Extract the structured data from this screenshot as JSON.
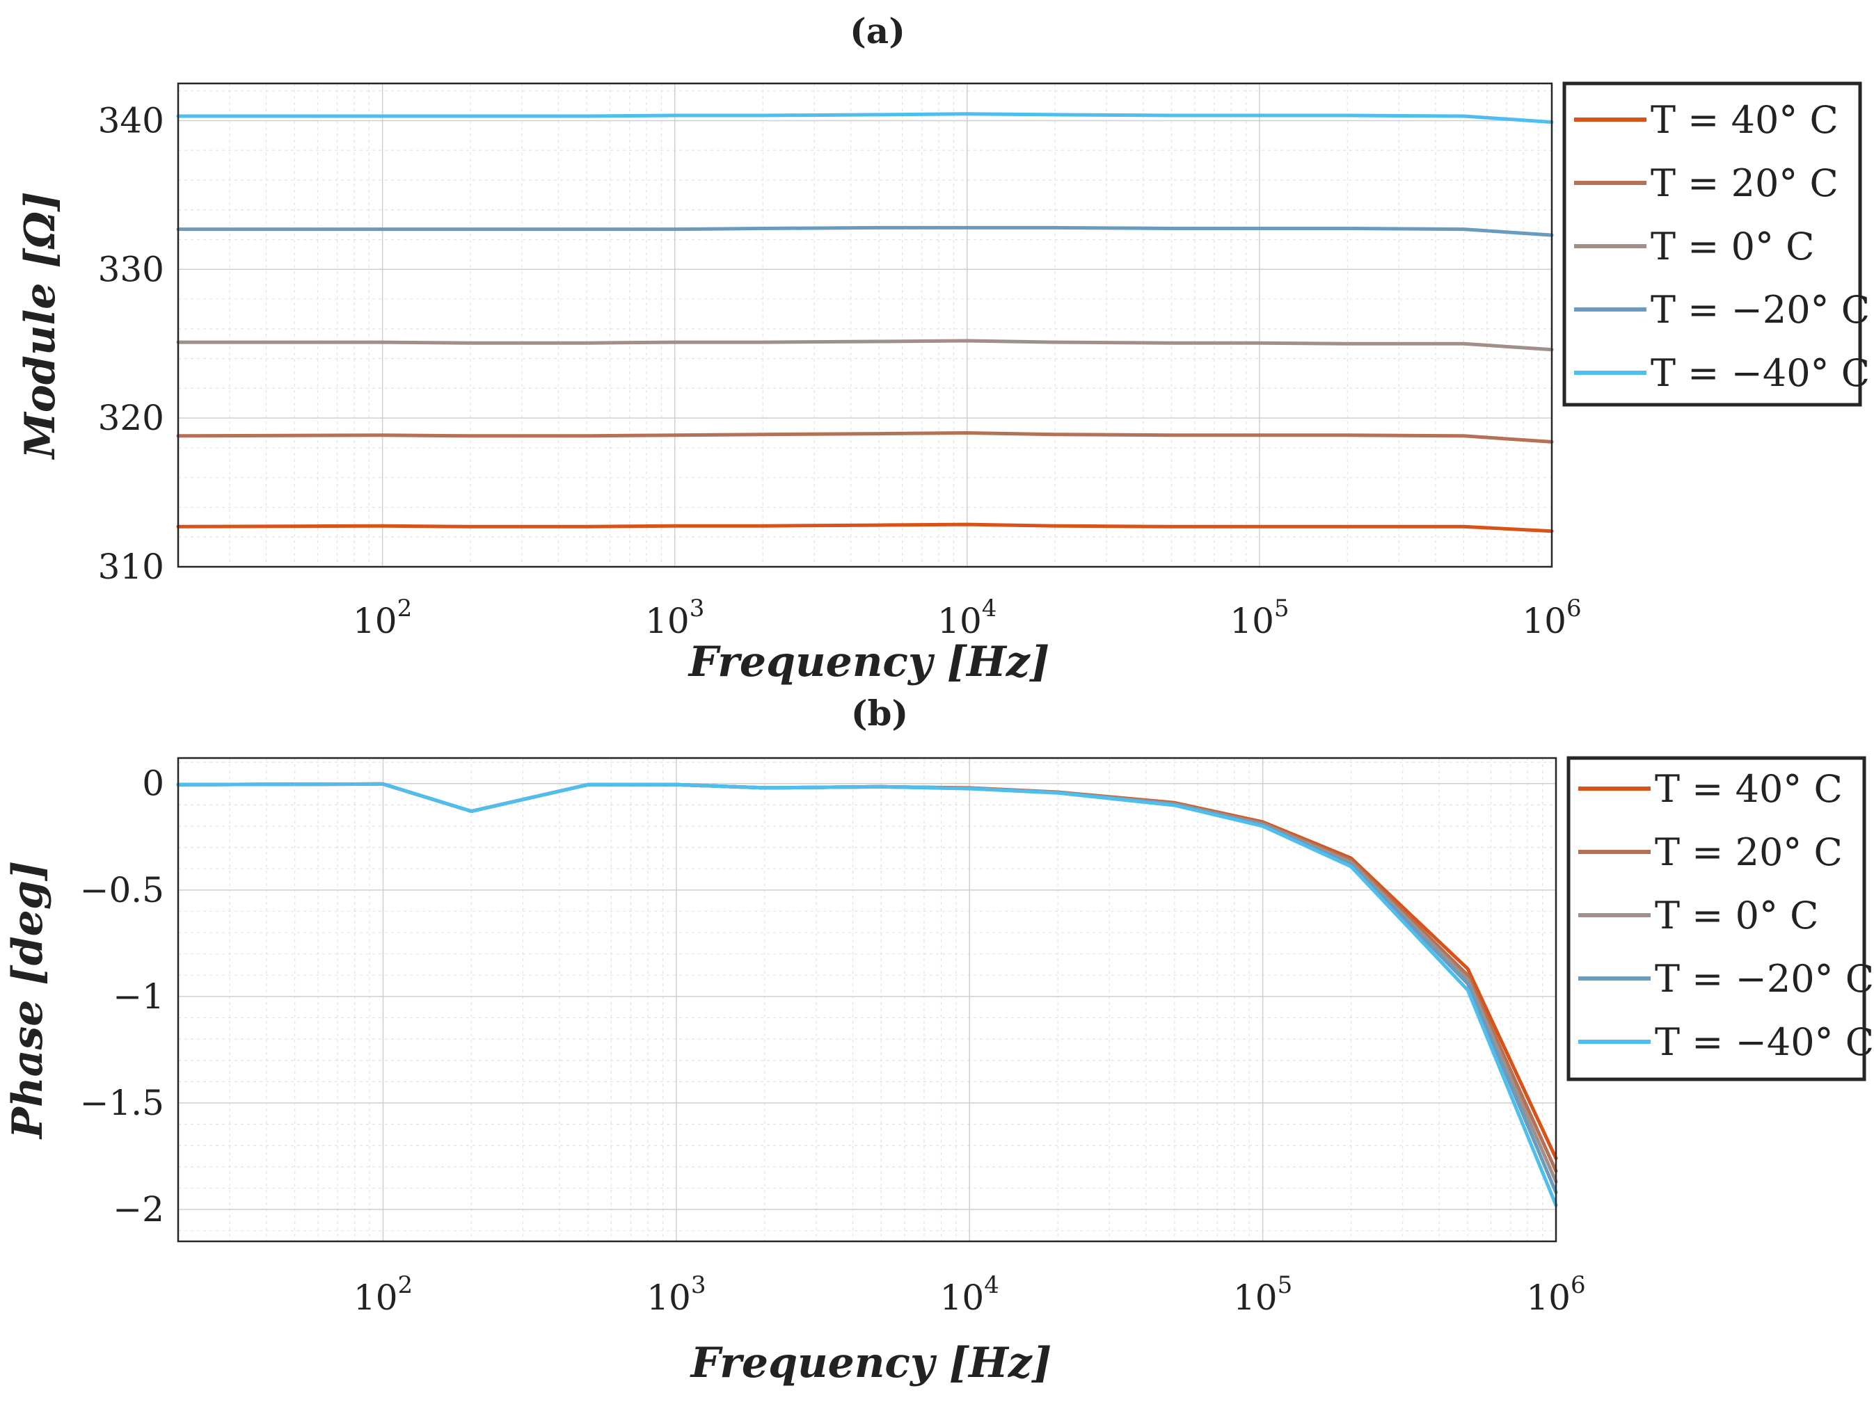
{
  "chart_data": [
    {
      "type": "line",
      "title": "(a)",
      "xlabel": "Frequency [Hz]",
      "ylabel": "Module [Ω]",
      "xscale": "log",
      "xlim": [
        20,
        1000000
      ],
      "ylim": [
        310,
        342.5
      ],
      "x_ticks": [
        {
          "base": "10",
          "exp": "2",
          "value": 100
        },
        {
          "base": "10",
          "exp": "3",
          "value": 1000
        },
        {
          "base": "10",
          "exp": "4",
          "value": 10000
        },
        {
          "base": "10",
          "exp": "5",
          "value": 100000
        },
        {
          "base": "10",
          "exp": "6",
          "value": 1000000
        }
      ],
      "y_ticks": [
        {
          "label": "310",
          "value": 310
        },
        {
          "label": "320",
          "value": 320
        },
        {
          "label": "330",
          "value": 330
        },
        {
          "label": "340",
          "value": 340
        }
      ],
      "grid": true,
      "legend_position": "outside-right",
      "x": [
        20,
        100,
        200,
        500,
        1000,
        2000,
        5000,
        10000,
        20000,
        50000,
        100000,
        200000,
        500000,
        1000000
      ],
      "series": [
        {
          "name": "T = 40° C",
          "color": "#D95319",
          "values": [
            312.7,
            312.75,
            312.7,
            312.7,
            312.75,
            312.75,
            312.8,
            312.85,
            312.75,
            312.7,
            312.7,
            312.7,
            312.7,
            312.4
          ]
        },
        {
          "name": "T = 20° C",
          "color": "#B57055",
          "values": [
            318.8,
            318.85,
            318.8,
            318.8,
            318.85,
            318.9,
            318.95,
            319.0,
            318.9,
            318.85,
            318.85,
            318.85,
            318.8,
            318.4
          ]
        },
        {
          "name": "T = 0° C",
          "color": "#A09088",
          "values": [
            325.1,
            325.1,
            325.05,
            325.05,
            325.1,
            325.1,
            325.15,
            325.2,
            325.1,
            325.05,
            325.05,
            325.0,
            325.0,
            324.6
          ]
        },
        {
          "name": "T = −20° C",
          "color": "#6A9BBF",
          "values": [
            332.7,
            332.7,
            332.7,
            332.7,
            332.7,
            332.75,
            332.8,
            332.8,
            332.8,
            332.75,
            332.75,
            332.75,
            332.7,
            332.3
          ]
        },
        {
          "name": "T = −40° C",
          "color": "#4DBEEE",
          "values": [
            340.3,
            340.3,
            340.3,
            340.3,
            340.35,
            340.35,
            340.4,
            340.45,
            340.4,
            340.35,
            340.35,
            340.35,
            340.3,
            339.9
          ]
        }
      ]
    },
    {
      "type": "line",
      "title": "(b)",
      "xlabel": "Frequency [Hz]",
      "ylabel": "Phase [deg]",
      "xscale": "log",
      "xlim": [
        20,
        1000000
      ],
      "ylim": [
        -2.15,
        0.12
      ],
      "x_ticks": [
        {
          "base": "10",
          "exp": "2",
          "value": 100
        },
        {
          "base": "10",
          "exp": "3",
          "value": 1000
        },
        {
          "base": "10",
          "exp": "4",
          "value": 10000
        },
        {
          "base": "10",
          "exp": "5",
          "value": 100000
        },
        {
          "base": "10",
          "exp": "6",
          "value": 1000000
        }
      ],
      "y_ticks": [
        {
          "label": "0",
          "value": 0
        },
        {
          "label": "−0.5",
          "value": -0.5
        },
        {
          "label": "−1",
          "value": -1
        },
        {
          "label": "−1.5",
          "value": -1.5
        },
        {
          "label": "−2",
          "value": -2
        }
      ],
      "grid": true,
      "legend_position": "outside-right",
      "x": [
        20,
        100,
        200,
        500,
        1000,
        2000,
        5000,
        10000,
        20000,
        50000,
        100000,
        200000,
        500000,
        1000000
      ],
      "series": [
        {
          "name": "T = 40° C",
          "color": "#D95319",
          "values": [
            -0.005,
            -0.002,
            -0.13,
            -0.005,
            -0.005,
            -0.02,
            -0.015,
            -0.02,
            -0.04,
            -0.09,
            -0.18,
            -0.35,
            -0.87,
            -1.76
          ]
        },
        {
          "name": "T = 20° C",
          "color": "#B57055",
          "values": [
            -0.005,
            -0.002,
            -0.13,
            -0.005,
            -0.005,
            -0.02,
            -0.015,
            -0.021,
            -0.041,
            -0.093,
            -0.185,
            -0.36,
            -0.9,
            -1.82
          ]
        },
        {
          "name": "T = 0° C",
          "color": "#A09088",
          "values": [
            -0.005,
            -0.002,
            -0.13,
            -0.005,
            -0.005,
            -0.02,
            -0.015,
            -0.022,
            -0.042,
            -0.096,
            -0.19,
            -0.37,
            -0.92,
            -1.87
          ]
        },
        {
          "name": "T = −20° C",
          "color": "#6A9BBF",
          "values": [
            -0.005,
            -0.002,
            -0.13,
            -0.005,
            -0.005,
            -0.02,
            -0.015,
            -0.023,
            -0.043,
            -0.099,
            -0.195,
            -0.38,
            -0.94,
            -1.92
          ]
        },
        {
          "name": "T = −40° C",
          "color": "#4DBEEE",
          "values": [
            -0.005,
            -0.002,
            -0.13,
            -0.005,
            -0.005,
            -0.02,
            -0.015,
            -0.024,
            -0.044,
            -0.102,
            -0.2,
            -0.39,
            -0.97,
            -1.98
          ]
        }
      ]
    }
  ]
}
